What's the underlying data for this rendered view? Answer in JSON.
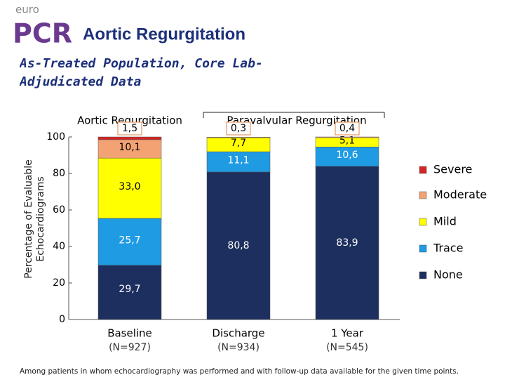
{
  "logo": {
    "small": "euro",
    "large": "PCR"
  },
  "chart_data": {
    "type": "stacked_bar",
    "title": "Aortic Regurgitation",
    "subtitle": "As-Treated Population, Core Lab-Adjudicated Data",
    "ylabel": "Percentage of Evaluable Echocardiograms",
    "group_labels": [
      "Aortic Regurgitation",
      "Paravalvular Regurgitation"
    ],
    "categories": [
      "Baseline",
      "Discharge",
      "1 Year"
    ],
    "category_notes": [
      "(N=927)",
      "(N=934)",
      "(N=545)"
    ],
    "series": [
      {
        "name": "None",
        "color": "#1c2f5e",
        "values": [
          29.7,
          80.8,
          83.9
        ],
        "value_labels": [
          "29,7",
          "80,8",
          "83,9"
        ]
      },
      {
        "name": "Trace",
        "color": "#1e9be3",
        "values": [
          25.7,
          11.1,
          10.6
        ],
        "value_labels": [
          "25,7",
          "11,1",
          "10,6"
        ]
      },
      {
        "name": "Mild",
        "color": "#ffff00",
        "values": [
          33.0,
          7.7,
          5.1
        ],
        "value_labels": [
          "33,0",
          "7,7",
          "5,1"
        ]
      },
      {
        "name": "Moderate",
        "color": "#f3a373",
        "values": [
          10.1,
          0.3,
          0.4
        ],
        "value_labels": [
          "10,1",
          "0,3",
          "0,4"
        ]
      },
      {
        "name": "Severe",
        "color": "#d42424",
        "values": [
          1.5,
          null,
          null
        ],
        "value_labels": [
          "1,5",
          null,
          null
        ]
      }
    ],
    "ylim": [
      0,
      100
    ],
    "yticks": [
      0,
      20,
      40,
      60,
      80,
      100
    ],
    "footnote": "Among patients in whom echocardiography was performed and with follow-up data available for the given time points."
  }
}
